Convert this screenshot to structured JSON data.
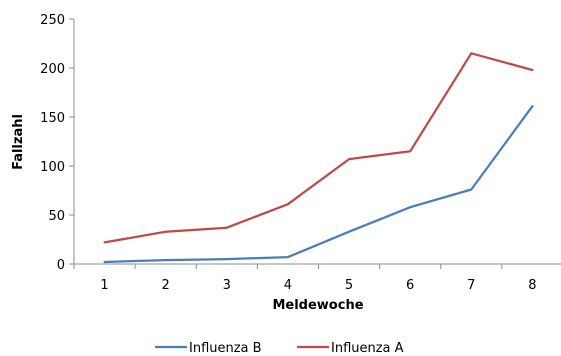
{
  "chart_data": {
    "type": "line",
    "title": "",
    "xlabel": "Meldewoche",
    "ylabel": "Fallzahl",
    "categories": [
      "1",
      "2",
      "3",
      "4",
      "5",
      "6",
      "7",
      "8"
    ],
    "ylim": [
      0,
      250
    ],
    "yticks": [
      "0",
      "50",
      "100",
      "150",
      "200",
      "250"
    ],
    "grid": false,
    "legend_position": "bottom",
    "series": [
      {
        "name": "Influenza B",
        "color": "#4a7ebb",
        "values": [
          2,
          4,
          5,
          7,
          33,
          58,
          76,
          161
        ]
      },
      {
        "name": "Influenza A",
        "color": "#be4b48",
        "values": [
          22,
          33,
          37,
          61,
          107,
          115,
          215,
          198
        ]
      }
    ]
  }
}
